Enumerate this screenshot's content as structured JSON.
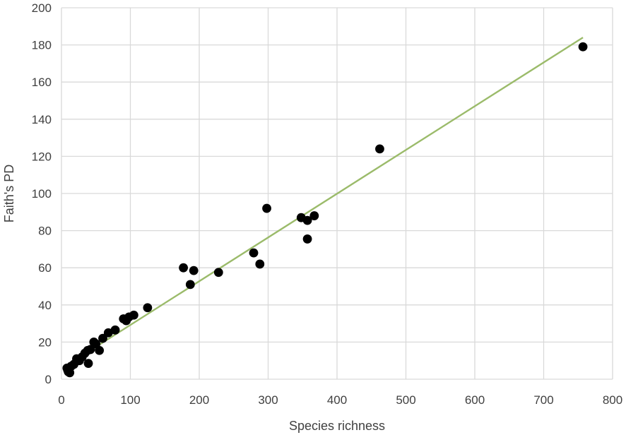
{
  "chart_data": {
    "type": "scatter",
    "title": "",
    "xlabel": "Species richness",
    "ylabel": "Faith's PD",
    "xlim": [
      0,
      800
    ],
    "ylim": [
      0,
      200
    ],
    "x_ticks": [
      0,
      100,
      200,
      300,
      400,
      500,
      600,
      700,
      800
    ],
    "y_ticks": [
      0,
      20,
      40,
      60,
      80,
      100,
      120,
      140,
      160,
      180,
      200
    ],
    "grid": true,
    "legend": "none",
    "series": [
      {
        "marker_color": "#000000",
        "points": [
          {
            "x": 8,
            "y": 6
          },
          {
            "x": 9,
            "y": 5
          },
          {
            "x": 10,
            "y": 4
          },
          {
            "x": 12,
            "y": 3.5
          },
          {
            "x": 14,
            "y": 7
          },
          {
            "x": 18,
            "y": 8
          },
          {
            "x": 22,
            "y": 11
          },
          {
            "x": 26,
            "y": 10
          },
          {
            "x": 30,
            "y": 12
          },
          {
            "x": 34,
            "y": 14
          },
          {
            "x": 38,
            "y": 15.5
          },
          {
            "x": 39,
            "y": 8.5
          },
          {
            "x": 42,
            "y": 16
          },
          {
            "x": 47,
            "y": 20
          },
          {
            "x": 50,
            "y": 19
          },
          {
            "x": 55,
            "y": 15.5
          },
          {
            "x": 60,
            "y": 22
          },
          {
            "x": 68,
            "y": 25
          },
          {
            "x": 78,
            "y": 26.5
          },
          {
            "x": 90,
            "y": 32.5
          },
          {
            "x": 94,
            "y": 31.5
          },
          {
            "x": 98,
            "y": 33.5
          },
          {
            "x": 105,
            "y": 34.5
          },
          {
            "x": 125,
            "y": 38.5
          },
          {
            "x": 177,
            "y": 60
          },
          {
            "x": 187,
            "y": 51
          },
          {
            "x": 192,
            "y": 58.5
          },
          {
            "x": 228,
            "y": 57.5
          },
          {
            "x": 279,
            "y": 68
          },
          {
            "x": 288,
            "y": 62
          },
          {
            "x": 298,
            "y": 92
          },
          {
            "x": 348,
            "y": 87
          },
          {
            "x": 357,
            "y": 85.5
          },
          {
            "x": 357,
            "y": 75.5
          },
          {
            "x": 367,
            "y": 88
          },
          {
            "x": 462,
            "y": 124
          },
          {
            "x": 757,
            "y": 179
          }
        ]
      }
    ],
    "trendline": {
      "type": "linear",
      "color": "#9bbb6a",
      "from": {
        "x": 10,
        "y": 8
      },
      "to": {
        "x": 757,
        "y": 184
      }
    }
  }
}
